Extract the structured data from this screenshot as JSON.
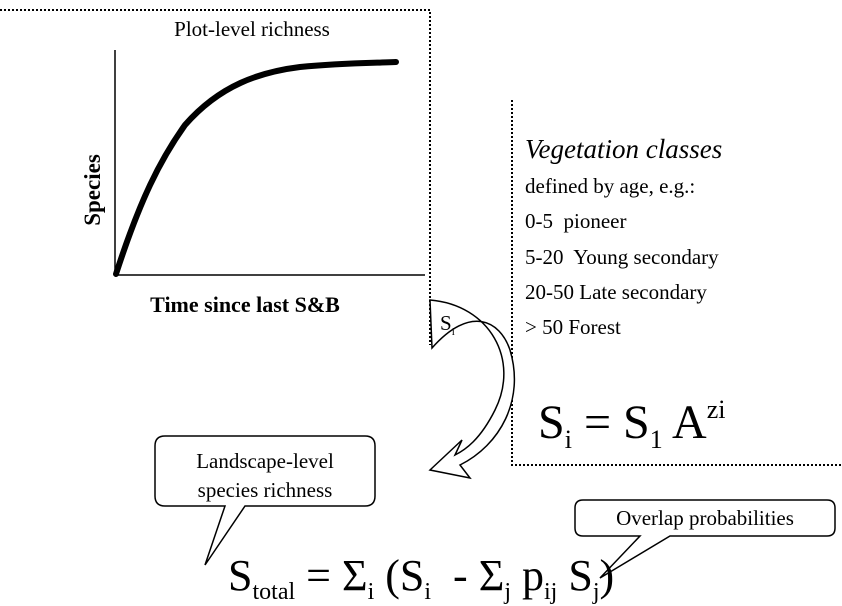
{
  "plot": {
    "title": "Plot-level richness",
    "y_label": "Species",
    "x_label": "Time since last S&B"
  },
  "arrow_label": [
    "S",
    "i"
  ],
  "vegetation": {
    "title": "Vegetation classes",
    "subtitle": "defined by age, e.g.:",
    "classes": [
      "0-5  pioneer",
      "5-20  Young secondary",
      "20-50 Late secondary",
      "> 50 Forest"
    ]
  },
  "area_formula": [
    "S",
    "i",
    " = S",
    "1",
    " A",
    "zi"
  ],
  "callouts": [
    {
      "lines": [
        "Landscape-level",
        "species richness"
      ]
    },
    {
      "lines": [
        "Overlap probabilities"
      ]
    }
  ],
  "total_formula": [
    "S",
    "total",
    " = Σ",
    "i",
    " (S",
    "i",
    "  - Σ",
    "j",
    " p",
    "ij",
    " S",
    "j",
    ")"
  ]
}
